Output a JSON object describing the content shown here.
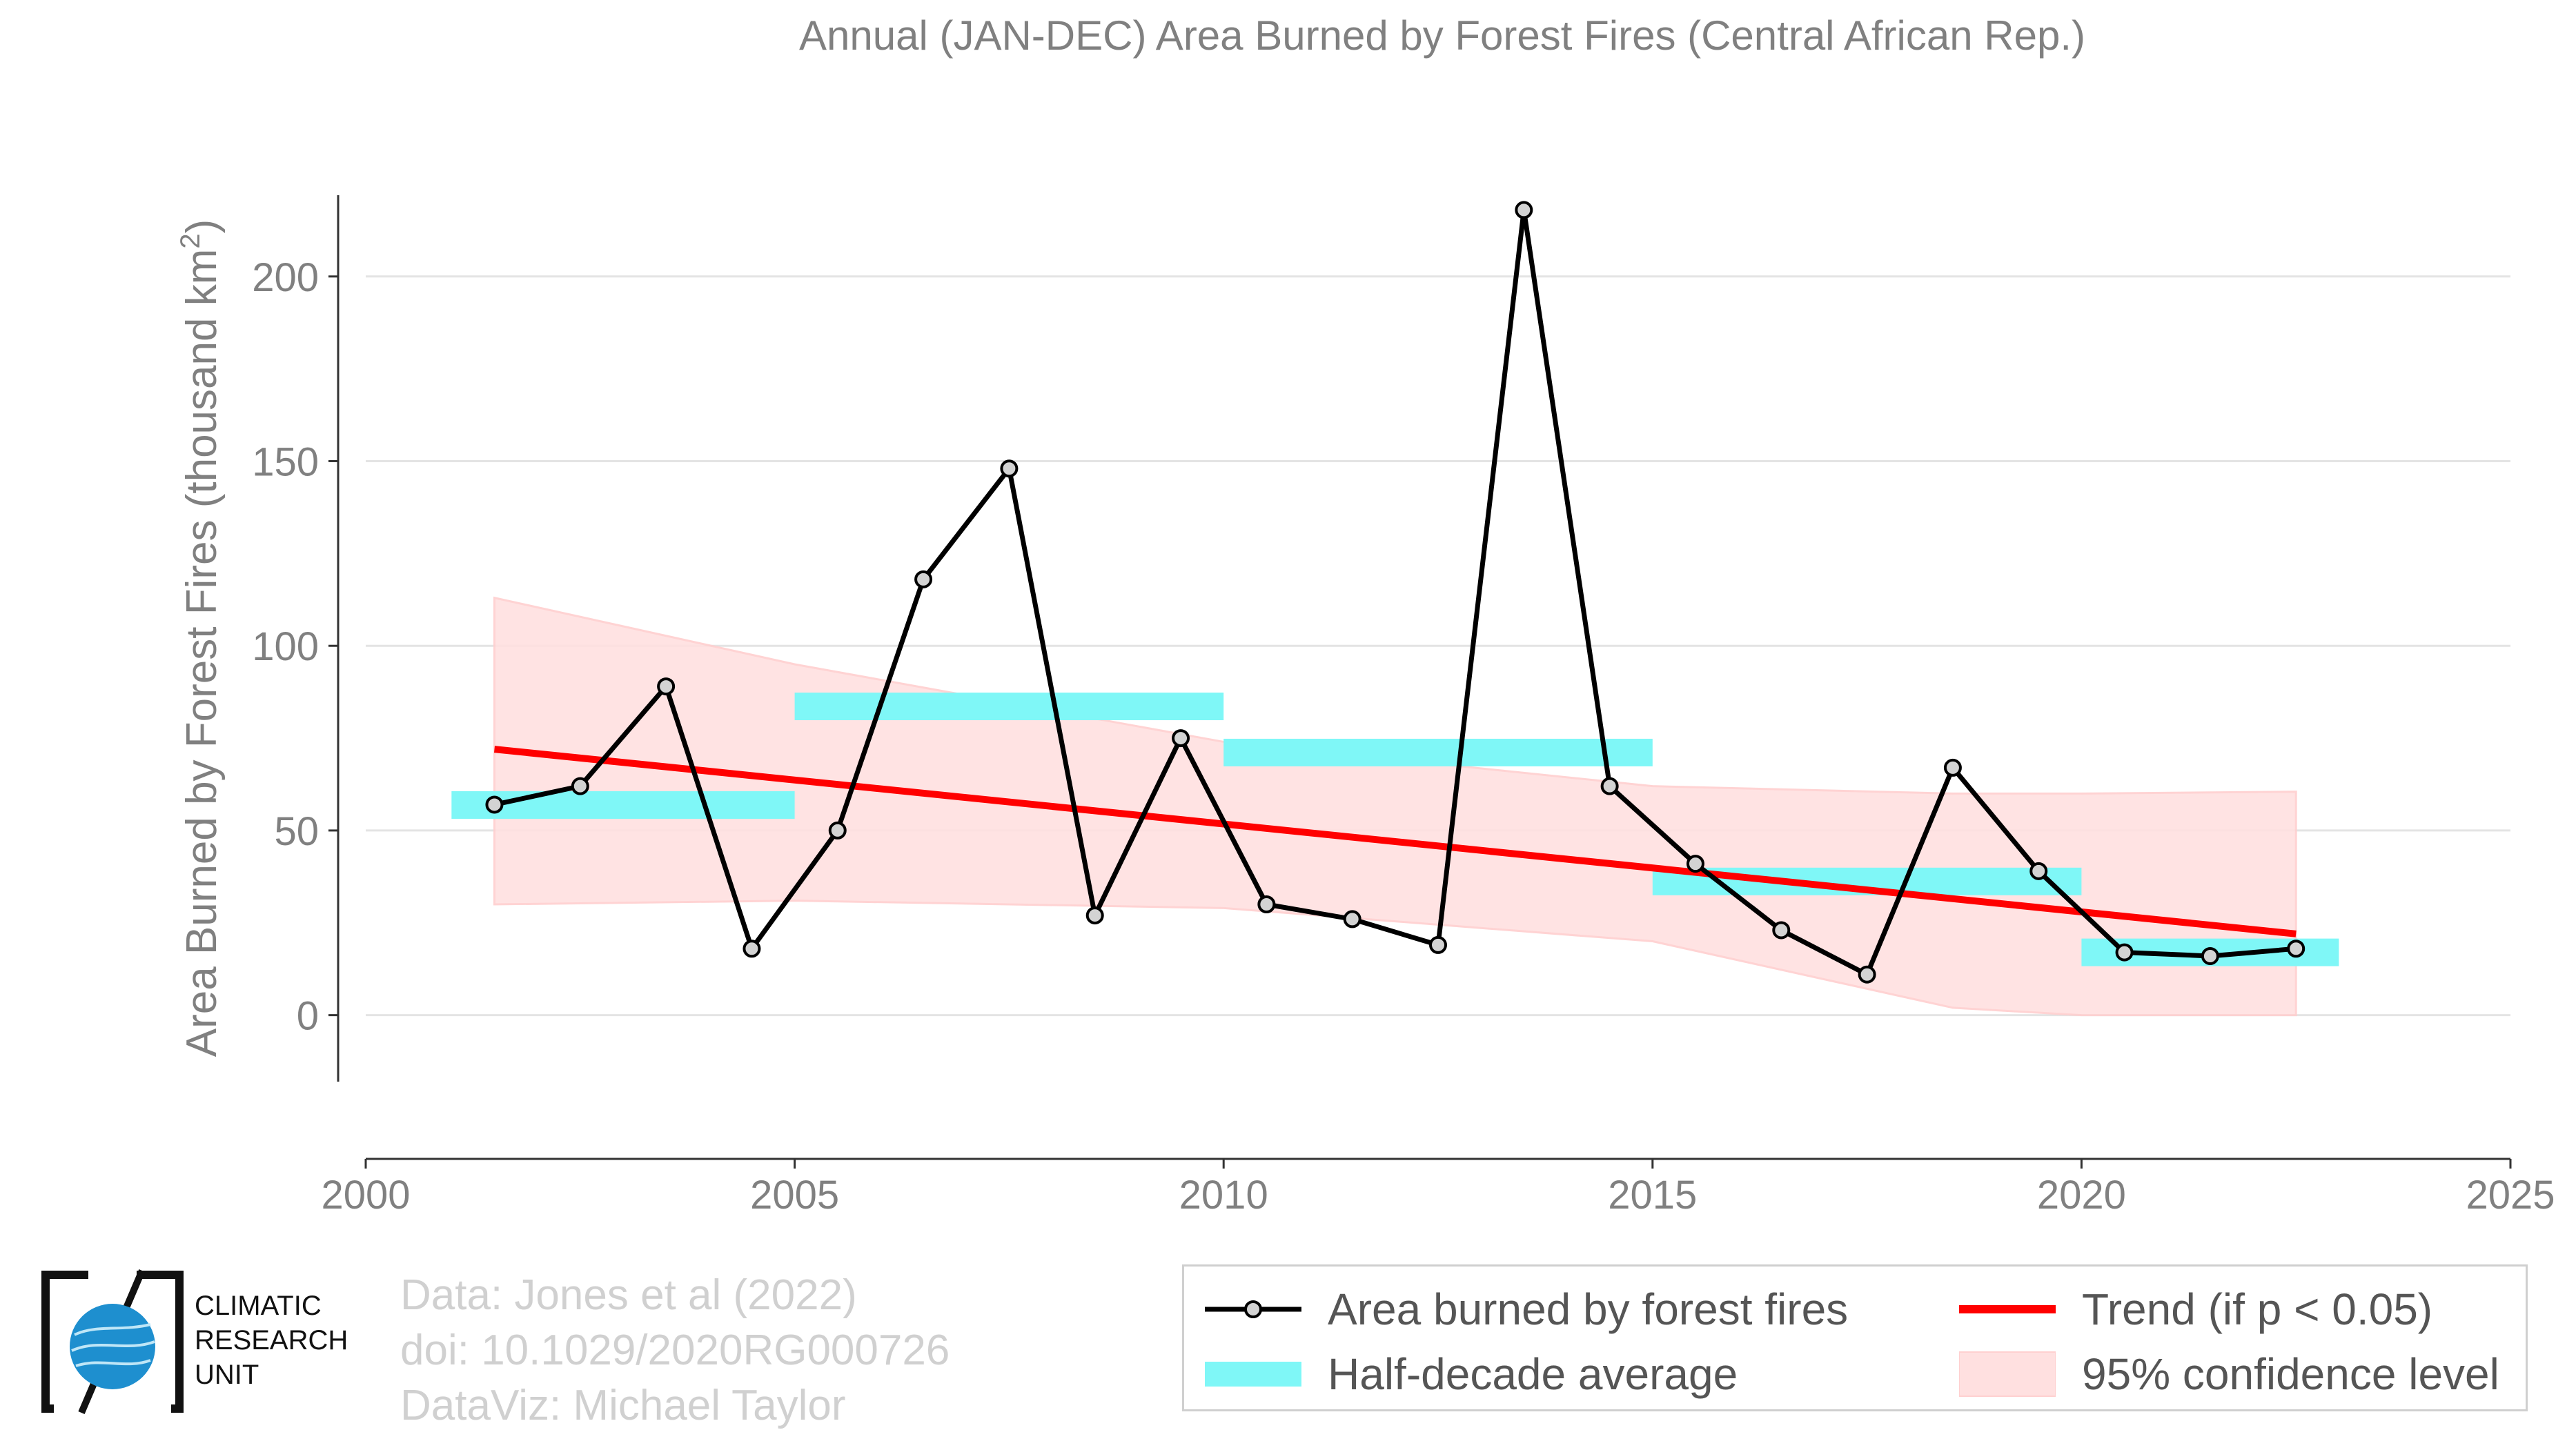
{
  "chart_data": {
    "type": "line",
    "title": "Annual (JAN-DEC) Area Burned by Forest Fires (Central African Rep.)",
    "ylabel": "Area Burned by Forest Fires (thousand km",
    "ylabel_sup": "2",
    "ylabel_end": ")",
    "xlim": [
      2000,
      2025
    ],
    "ylim": [
      -18,
      222
    ],
    "x_ticks": [
      2000,
      2005,
      2010,
      2015,
      2020,
      2025
    ],
    "y_ticks": [
      0,
      50,
      100,
      150,
      200
    ],
    "grid": "horizontal",
    "series": [
      {
        "name": "Area burned by forest fires",
        "color": "#000000",
        "x": [
          2001.5,
          2002.5,
          2003.5,
          2004.5,
          2005.5,
          2006.5,
          2007.5,
          2008.5,
          2009.5,
          2010.5,
          2011.5,
          2012.5,
          2013.5,
          2014.5,
          2015.5,
          2016.5,
          2017.5,
          2018.5,
          2019.5,
          2020.5,
          2021.5,
          2022.5
        ],
        "values": [
          57,
          62,
          89,
          18,
          50,
          118,
          148,
          27,
          75,
          30,
          26,
          19,
          218,
          62,
          41,
          23,
          11,
          67,
          39,
          17,
          16,
          18
        ]
      }
    ],
    "half_decade_average": {
      "name": "Half-decade average",
      "color": "#7ff7f7",
      "segments": [
        {
          "x_start": 2001,
          "x_end": 2005,
          "value": 56.9
        },
        {
          "x_start": 2005,
          "x_end": 2010,
          "value": 83.6
        },
        {
          "x_start": 2010,
          "x_end": 2015,
          "value": 71.1
        },
        {
          "x_start": 2015,
          "x_end": 2020,
          "value": 36.2
        },
        {
          "x_start": 2020,
          "x_end": 2023,
          "value": 17.0
        }
      ]
    },
    "trend": {
      "name": "Trend (if p < 0.05)",
      "color": "#ff0000",
      "x": [
        2001.5,
        2022.5
      ],
      "values": [
        72,
        22
      ]
    },
    "confidence_band": {
      "name": "95% confidence level",
      "color": "#ffe0e0",
      "x": [
        2001.5,
        2005,
        2010,
        2015,
        2018.5,
        2020,
        2022.5
      ],
      "upper": [
        113,
        95,
        74,
        62,
        60,
        60,
        60.5
      ],
      "lower": [
        30,
        31,
        29,
        20,
        2,
        -1,
        -1
      ]
    },
    "legend_position": "bottom-right"
  },
  "credits": {
    "line1": "Data: Jones et al (2022)",
    "line2": "doi: 10.1029/2020RG000726",
    "line3": "DataViz: Michael Taylor"
  },
  "logo": {
    "line1": "CLIMATIC",
    "line2": "RESEARCH",
    "line3": "UNIT"
  }
}
